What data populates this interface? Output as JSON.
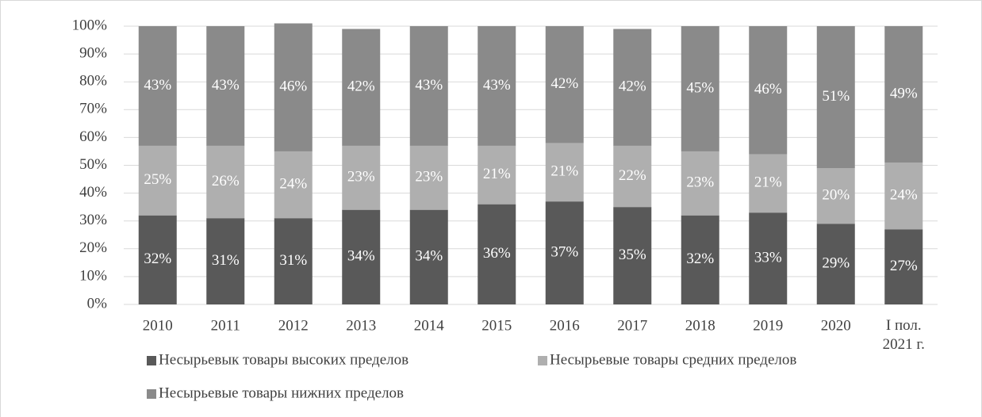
{
  "chart_data": {
    "type": "stacked_bar",
    "categories": [
      "2010",
      "2011",
      "2012",
      "2013",
      "2014",
      "2015",
      "2016",
      "2017",
      "2018",
      "2019",
      "2020",
      "I пол. 2021 г."
    ],
    "series": [
      {
        "name": "Несырьевык товары высоких пределов",
        "color": "#595959",
        "values": [
          32,
          31,
          31,
          34,
          34,
          36,
          37,
          35,
          32,
          33,
          29,
          27
        ],
        "value_labels": [
          "32%",
          "31%",
          "31%",
          "34%",
          "34%",
          "36%",
          "37%",
          "35%",
          "32%",
          "33%",
          "29%",
          "27%"
        ]
      },
      {
        "name": "Несырьевые товары средних пределов",
        "color": "#afafaf",
        "values": [
          25,
          26,
          24,
          23,
          23,
          21,
          21,
          22,
          23,
          21,
          20,
          24
        ],
        "value_labels": [
          "25%",
          "26%",
          "24%",
          "23%",
          "23%",
          "21%",
          "21%",
          "22%",
          "23%",
          "21%",
          "20%",
          "24%"
        ]
      },
      {
        "name": "Несырьевые товары нижних пределов",
        "color": "#8a8a8a",
        "values": [
          43,
          43,
          46,
          42,
          43,
          43,
          42,
          42,
          45,
          46,
          51,
          49
        ],
        "value_labels": [
          "43%",
          "43%",
          "46%",
          "42%",
          "43%",
          "43%",
          "42%",
          "42%",
          "45%",
          "46%",
          "51%",
          "49%"
        ]
      }
    ],
    "ylim": [
      0,
      100
    ],
    "yticks": [
      {
        "value": 0,
        "label": "0%"
      },
      {
        "value": 10,
        "label": "10%"
      },
      {
        "value": 20,
        "label": "20%"
      },
      {
        "value": 30,
        "label": "30%"
      },
      {
        "value": 40,
        "label": "40%"
      },
      {
        "value": 50,
        "label": "50%"
      },
      {
        "value": 60,
        "label": "60%"
      },
      {
        "value": 70,
        "label": "70%"
      },
      {
        "value": 80,
        "label": "80%"
      },
      {
        "value": 90,
        "label": "90%"
      },
      {
        "value": 100,
        "label": "100%"
      }
    ],
    "grid": true,
    "legend": "bottom"
  }
}
